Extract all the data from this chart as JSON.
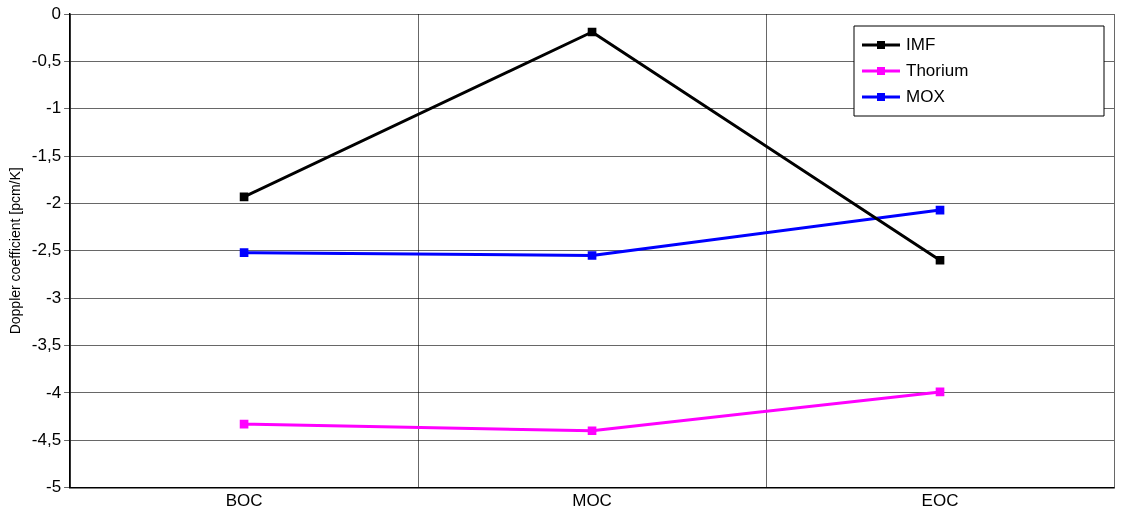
{
  "chart_data": {
    "type": "line",
    "ylabel": "Doppler coefficient [pcm/K]",
    "categories": [
      "BOC",
      "MOC",
      "EOC"
    ],
    "series": [
      {
        "name": "IMF",
        "color": "#000000",
        "values": [
          -1.93,
          -0.19,
          -2.6
        ]
      },
      {
        "name": "Thorium",
        "color": "#ff00ff",
        "values": [
          -4.33,
          -4.4,
          -3.99
        ]
      },
      {
        "name": "MOX",
        "color": "#0000ff",
        "values": [
          -2.52,
          -2.55,
          -2.07
        ]
      }
    ],
    "ylim": [
      -5,
      0
    ],
    "yticks": [
      {
        "value": -5,
        "label": "-5"
      },
      {
        "value": -4.5,
        "label": "-4,5"
      },
      {
        "value": -4,
        "label": "-4"
      },
      {
        "value": -3.5,
        "label": "-3,5"
      },
      {
        "value": -3,
        "label": "-3"
      },
      {
        "value": -2.5,
        "label": "-2,5"
      },
      {
        "value": -2,
        "label": "-2"
      },
      {
        "value": -1.5,
        "label": "-1,5"
      },
      {
        "value": -1,
        "label": "-1"
      },
      {
        "value": -0.5,
        "label": "-0,5"
      },
      {
        "value": 0,
        "label": "0"
      }
    ],
    "grid": true,
    "legend": "top right",
    "marker": "square",
    "line_style": "solid"
  }
}
